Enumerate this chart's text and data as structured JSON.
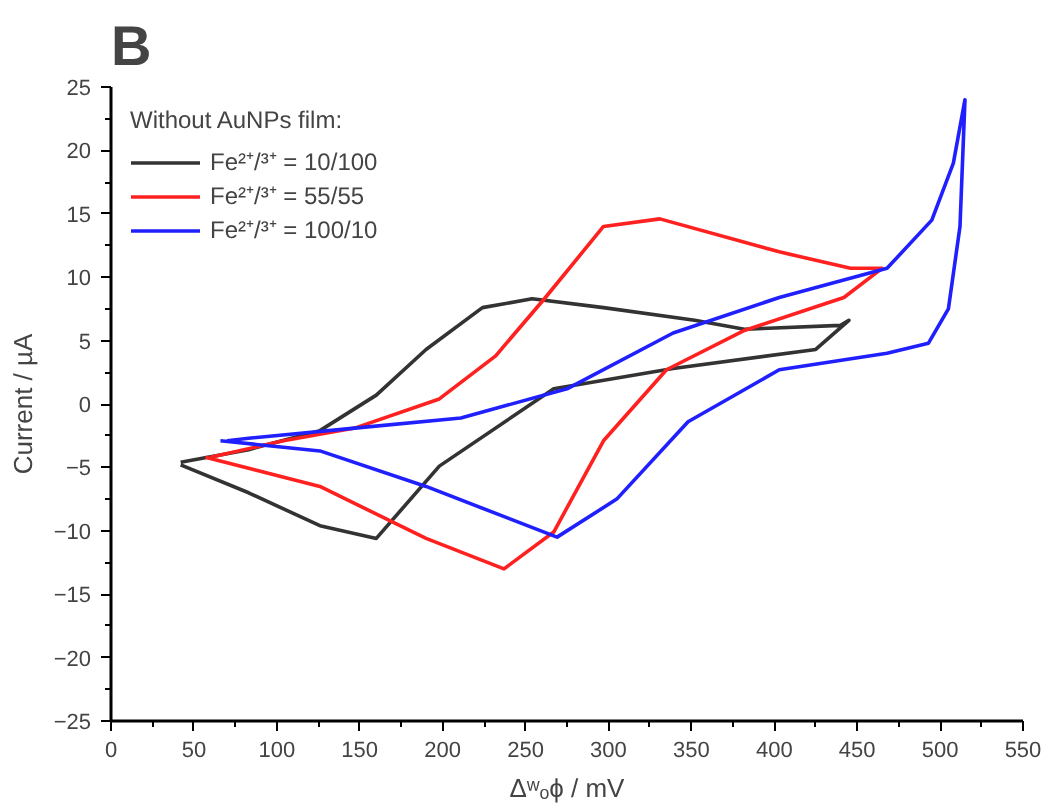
{
  "chart_data": {
    "type": "line",
    "title": "B",
    "xlabel": "Δʷₒϕ / mV",
    "ylabel": "Current / µA",
    "legend_title": "Without AuNPs film:",
    "xlim": [
      0,
      550
    ],
    "ylim": [
      -25,
      25
    ],
    "xticks": [
      0,
      50,
      100,
      150,
      200,
      250,
      300,
      350,
      400,
      450,
      500,
      550
    ],
    "yticks": [
      -25,
      -20,
      -15,
      -10,
      -5,
      0,
      5,
      10,
      15,
      20,
      25
    ],
    "grid": false,
    "legend": "top left",
    "marker": "none",
    "line_style": "solid",
    "series": [
      {
        "name": "Fe²⁺/³⁺ = 10/100",
        "color": "#333333",
        "x": [
          42,
          83,
          126,
          160,
          198,
          267,
          339,
          425,
          445,
          440,
          382,
          352,
          297,
          254,
          224,
          190,
          160,
          126,
          83,
          42
        ],
        "values": [
          -4.8,
          -7.0,
          -9.6,
          -10.6,
          -4.9,
          1.2,
          2.8,
          4.3,
          6.6,
          6.2,
          5.9,
          6.6,
          7.6,
          8.3,
          7.6,
          4.3,
          0.7,
          -2.1,
          -3.6,
          -4.6
        ]
      },
      {
        "name": "Fe²⁺/³⁺ = 55/55",
        "color": "#ff2020",
        "x": [
          57,
          126,
          190,
          237,
          267,
          297,
          335,
          382,
          442,
          465,
          446,
          403,
          331,
          297,
          262,
          232,
          198,
          147,
          104,
          60
        ],
        "values": [
          -4.2,
          -6.5,
          -10.6,
          -13.0,
          -10.1,
          -2.9,
          2.7,
          5.8,
          8.4,
          10.7,
          10.7,
          12.0,
          14.6,
          14.0,
          8.4,
          3.8,
          0.4,
          -1.9,
          -2.9,
          -4.2
        ]
      },
      {
        "name": "Fe²⁺/³⁺ = 100/10",
        "color": "#2020ff",
        "x": [
          66,
          126,
          190,
          269,
          305,
          348,
          403,
          468,
          493,
          505,
          512,
          515,
          508,
          495,
          468,
          403,
          339,
          275,
          211,
          147,
          83,
          70
        ],
        "values": [
          -2.9,
          -3.7,
          -6.5,
          -10.5,
          -7.5,
          -1.4,
          2.7,
          4.0,
          4.8,
          7.5,
          14.0,
          24.0,
          19.0,
          14.5,
          10.7,
          8.4,
          5.6,
          1.2,
          -1.1,
          -1.9,
          -2.7,
          -2.9
        ]
      }
    ]
  }
}
